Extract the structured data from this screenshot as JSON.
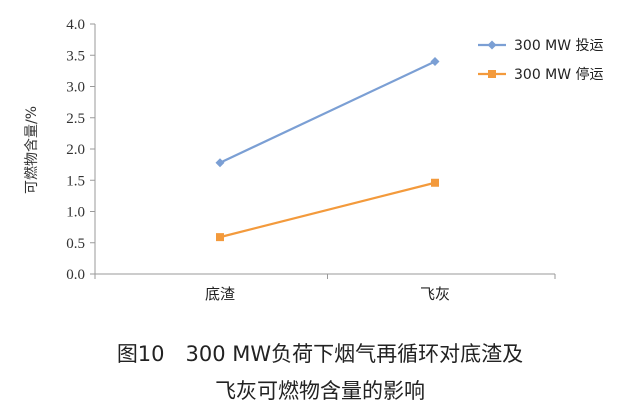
{
  "chart_data": {
    "type": "line",
    "categories": [
      "底渣",
      "飞灰"
    ],
    "series": [
      {
        "name": "300 MW 投运",
        "values": [
          1.78,
          3.4
        ],
        "color": "#7b9fd4",
        "marker": "diamond"
      },
      {
        "name": "300 MW 停运",
        "values": [
          0.59,
          1.46
        ],
        "color": "#f39a3c",
        "marker": "square"
      }
    ],
    "ylabel": "可燃物含量/%",
    "xlabel": "",
    "ylim": [
      0.0,
      4.0
    ],
    "yticks": [
      "0.0",
      "0.5",
      "1.0",
      "1.5",
      "2.0",
      "2.5",
      "3.0",
      "3.5",
      "4.0"
    ],
    "grid": false,
    "legend_position": "top-right"
  },
  "caption": {
    "line1": "图10　300 MW负荷下烟气再循环对底渣及",
    "line2": "飞灰可燃物含量的影响"
  }
}
